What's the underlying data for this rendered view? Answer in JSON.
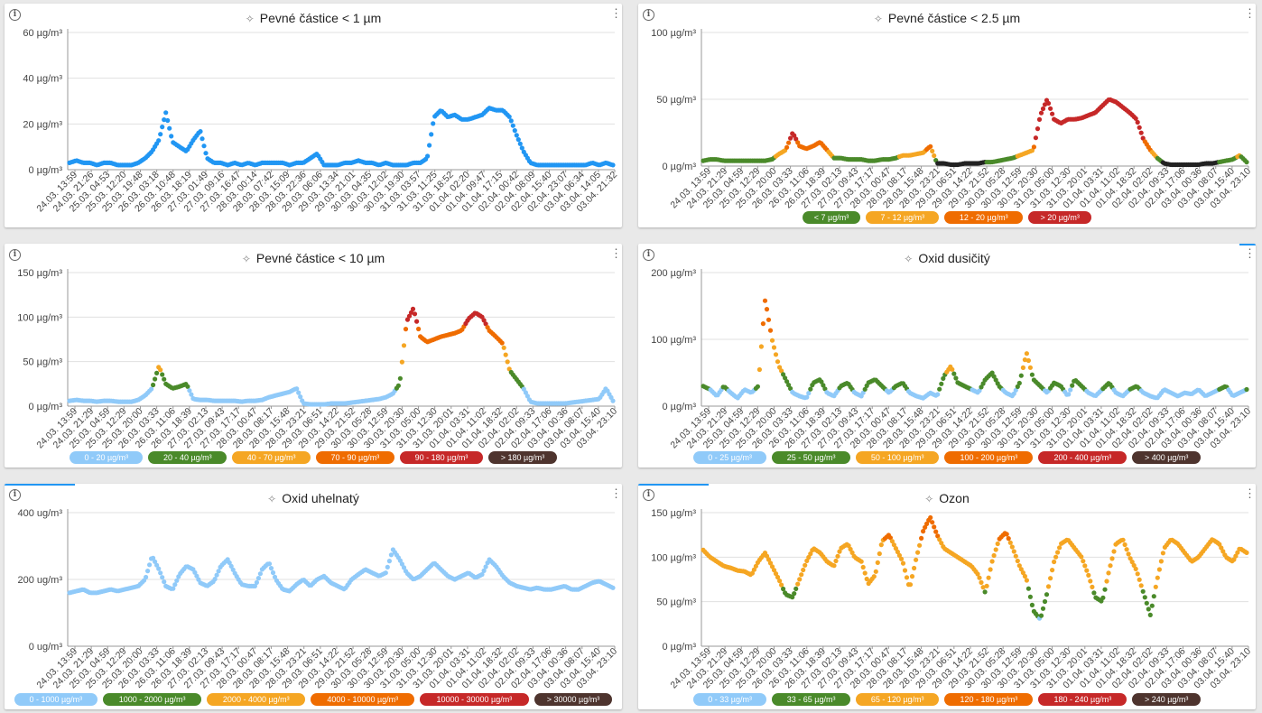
{
  "colors": {
    "blue": "#2196f3",
    "lightblue": "#90caf9",
    "green": "#4a8a2a",
    "yellow": "#f5a623",
    "orange": "#ef6c00",
    "red": "#c62828",
    "black": "#222222",
    "brown": "#4e342e"
  },
  "panels": [
    {
      "title": "Pevné částice < 1 µm",
      "yunit": "µg/m³",
      "ylim": [
        0,
        60
      ],
      "yticks": [
        0,
        20,
        40,
        60
      ],
      "xticks": [
        "24.03. 13:59",
        "24.03. 21:26",
        "25.03. 04:53",
        "25.03. 12:20",
        "25.03. 19:48",
        "26.03. 03:18",
        "26.03. 10:48",
        "26.03. 18:19",
        "27.03. 01:49",
        "27.03. 09:16",
        "27.03. 16:47",
        "28.03. 00:14",
        "28.03. 07:42",
        "28.03. 15:09",
        "28.03. 22:36",
        "29.03. 06:06",
        "29.03. 13:34",
        "29.03. 21:01",
        "30.03. 04:35",
        "30.03. 12:02",
        "30.03. 19:30",
        "31.03. 03:57",
        "31.03. 11:25",
        "31.03. 18:52",
        "01.04. 02:20",
        "01.04. 09:47",
        "01.04. 17:15",
        "02.04. 00:42",
        "02.04. 08:09",
        "02.04. 15:40",
        "02.04. 23:07",
        "03.04. 06:34",
        "03.04. 14:05",
        "03.04. 21:32"
      ],
      "legend": [],
      "chart_data": {
        "type": "scatter",
        "x_count": 80,
        "values": [
          3,
          4,
          3,
          3,
          2,
          3,
          3,
          2,
          2,
          2,
          3,
          5,
          8,
          13,
          25,
          12,
          10,
          8,
          13,
          17,
          5,
          3,
          3,
          2,
          3,
          2,
          3,
          2,
          3,
          3,
          3,
          3,
          2,
          3,
          3,
          5,
          7,
          2,
          2,
          2,
          3,
          3,
          4,
          3,
          3,
          2,
          3,
          2,
          2,
          2,
          3,
          3,
          5,
          23,
          26,
          23,
          24,
          22,
          22,
          23,
          24,
          27,
          26,
          26,
          23,
          15,
          8,
          3,
          2,
          2,
          2,
          2,
          2,
          2,
          2,
          2,
          3,
          2,
          3,
          2
        ],
        "bands": [
          [
            0,
            "blue"
          ]
        ]
      }
    },
    {
      "title": "Pevné částice < 2.5 µm",
      "yunit": "µg/m³",
      "ylim": [
        0,
        100
      ],
      "yticks": [
        0,
        50,
        100
      ],
      "xticks": [
        "24.03. 13:59",
        "24.03. 21:29",
        "25.03. 04:59",
        "25.03. 12:29",
        "25.03. 20:00",
        "26.03. 03:33",
        "26.03. 11:06",
        "26.03. 18:39",
        "27.03. 02:13",
        "27.03. 09:43",
        "27.03. 17:17",
        "28.03. 00:47",
        "28.03. 08:17",
        "28.03. 15:48",
        "28.03. 23:21",
        "29.03. 06:51",
        "29.03. 14:22",
        "29.03. 21:52",
        "30.03. 05:28",
        "30.03. 12:59",
        "30.03. 20:30",
        "31.03. 05:00",
        "31.03. 12:30",
        "31.03. 20:01",
        "01.04. 03:31",
        "01.04. 11:02",
        "01.04. 18:32",
        "02.04. 02:02",
        "02.04. 09:33",
        "02.04. 17:06",
        "03.04. 00:36",
        "03.04. 08:07",
        "03.04. 15:40",
        "03.04. 23:10"
      ],
      "legend": [
        {
          "label": "< 7 µg/m³",
          "color": "green"
        },
        {
          "label": "7 - 12 µg/m³",
          "color": "yellow"
        },
        {
          "label": "12 - 20 µg/m³",
          "color": "orange"
        },
        {
          "label": "> 20 µg/m³",
          "color": "red"
        }
      ],
      "chart_data": {
        "type": "scatter",
        "x_count": 80,
        "values": [
          4,
          5,
          5,
          4,
          4,
          4,
          4,
          4,
          4,
          4,
          5,
          9,
          12,
          25,
          15,
          13,
          15,
          18,
          12,
          6,
          6,
          5,
          5,
          5,
          4,
          4,
          5,
          5,
          6,
          8,
          8,
          9,
          10,
          15,
          2,
          2,
          1,
          1,
          2,
          2,
          2,
          3,
          3,
          4,
          5,
          6,
          8,
          10,
          12,
          38,
          50,
          35,
          32,
          35,
          35,
          36,
          38,
          40,
          45,
          50,
          48,
          44,
          40,
          35,
          20,
          12,
          6,
          2,
          1,
          1,
          1,
          1,
          1,
          2,
          2,
          3,
          4,
          5,
          8,
          3
        ],
        "bands": [
          [
            0,
            "black"
          ],
          [
            3,
            "green"
          ],
          [
            7,
            "yellow"
          ],
          [
            12,
            "orange"
          ],
          [
            20,
            "red"
          ]
        ]
      }
    },
    {
      "title": "Pevné částice < 10 µm",
      "yunit": "µg/m³",
      "ylim": [
        0,
        150
      ],
      "yticks": [
        0,
        50,
        100,
        150
      ],
      "xticks": [
        "24.03. 13:59",
        "24.03. 21:29",
        "25.03. 04:59",
        "25.03. 12:29",
        "25.03. 20:00",
        "26.03. 03:33",
        "26.03. 11:06",
        "26.03. 18:39",
        "27.03. 02:13",
        "27.03. 09:43",
        "27.03. 17:17",
        "28.03. 00:47",
        "28.03. 08:17",
        "28.03. 15:48",
        "28.03. 23:21",
        "29.03. 06:51",
        "29.03. 14:22",
        "29.03. 21:52",
        "30.03. 05:28",
        "30.03. 12:59",
        "30.03. 20:30",
        "31.03. 05:00",
        "31.03. 12:30",
        "31.03. 20:01",
        "01.04. 03:31",
        "01.04. 11:02",
        "01.04. 18:32",
        "02.04. 02:02",
        "02.04. 09:33",
        "02.04. 17:06",
        "03.04. 00:36",
        "03.04. 08:07",
        "03.04. 15:40",
        "03.04. 23:10"
      ],
      "legend": [
        {
          "label": "0 - 20 µg/m³",
          "color": "lightblue"
        },
        {
          "label": "20 - 40 µg/m³",
          "color": "green"
        },
        {
          "label": "40 - 70 µg/m³",
          "color": "yellow"
        },
        {
          "label": "70 - 90 µg/m³",
          "color": "orange"
        },
        {
          "label": "90 - 180 µg/m³",
          "color": "red"
        },
        {
          "label": "> 180 µg/m³",
          "color": "brown"
        }
      ],
      "chart_data": {
        "type": "scatter",
        "x_count": 80,
        "values": [
          6,
          7,
          6,
          6,
          5,
          6,
          6,
          5,
          5,
          5,
          7,
          12,
          20,
          45,
          25,
          20,
          22,
          25,
          8,
          7,
          7,
          6,
          6,
          6,
          6,
          5,
          6,
          6,
          7,
          10,
          12,
          14,
          16,
          20,
          3,
          2,
          2,
          2,
          3,
          3,
          3,
          4,
          5,
          6,
          7,
          8,
          10,
          14,
          25,
          95,
          110,
          78,
          72,
          75,
          78,
          80,
          82,
          85,
          98,
          105,
          100,
          85,
          78,
          70,
          40,
          30,
          20,
          5,
          3,
          3,
          3,
          3,
          3,
          4,
          5,
          6,
          7,
          8,
          20,
          6
        ],
        "bands": [
          [
            0,
            "lightblue"
          ],
          [
            20,
            "green"
          ],
          [
            40,
            "yellow"
          ],
          [
            70,
            "orange"
          ],
          [
            90,
            "red"
          ],
          [
            180,
            "brown"
          ]
        ]
      }
    },
    {
      "title": "Oxid dusičitý",
      "yunit": "µg/m³",
      "ylim": [
        0,
        200
      ],
      "yticks": [
        0,
        100,
        200
      ],
      "xticks": [
        "24.03. 13:59",
        "24.03. 21:29",
        "25.03. 04:59",
        "25.03. 12:29",
        "25.03. 20:00",
        "26.03. 03:33",
        "26.03. 11:06",
        "26.03. 18:39",
        "27.03. 02:13",
        "27.03. 09:43",
        "27.03. 17:17",
        "28.03. 00:47",
        "28.03. 08:17",
        "28.03. 15:48",
        "28.03. 23:21",
        "29.03. 06:51",
        "29.03. 14:22",
        "29.03. 21:52",
        "30.03. 05:28",
        "30.03. 12:59",
        "30.03. 20:30",
        "31.03. 05:00",
        "31.03. 12:30",
        "31.03. 20:01",
        "01.04. 03:31",
        "01.04. 11:02",
        "01.04. 18:32",
        "02.04. 02:02",
        "02.04. 09:33",
        "02.04. 17:06",
        "03.04. 00:36",
        "03.04. 08:07",
        "03.04. 15:40",
        "03.04. 23:10"
      ],
      "legend": [
        {
          "label": "0 - 25 µg/m³",
          "color": "lightblue"
        },
        {
          "label": "25 - 50 µg/m³",
          "color": "green"
        },
        {
          "label": "50 - 100 µg/m³",
          "color": "yellow"
        },
        {
          "label": "100 - 200 µg/m³",
          "color": "orange"
        },
        {
          "label": "200 - 400 µg/m³",
          "color": "red"
        },
        {
          "label": "> 400 µg/m³",
          "color": "brown"
        }
      ],
      "chart_data": {
        "type": "scatter",
        "x_count": 80,
        "values": [
          30,
          25,
          15,
          30,
          20,
          12,
          25,
          20,
          30,
          160,
          100,
          60,
          40,
          20,
          15,
          12,
          35,
          40,
          20,
          15,
          30,
          35,
          20,
          15,
          35,
          40,
          30,
          20,
          30,
          35,
          20,
          15,
          12,
          20,
          15,
          45,
          60,
          35,
          30,
          25,
          20,
          40,
          50,
          30,
          20,
          15,
          35,
          80,
          40,
          30,
          20,
          35,
          30,
          15,
          40,
          30,
          20,
          15,
          25,
          35,
          20,
          15,
          25,
          30,
          20,
          15,
          12,
          25,
          20,
          15,
          20,
          18,
          25,
          15,
          20,
          25,
          30,
          15,
          20,
          25
        ],
        "bands": [
          [
            0,
            "lightblue"
          ],
          [
            25,
            "green"
          ],
          [
            50,
            "yellow"
          ],
          [
            100,
            "orange"
          ],
          [
            200,
            "red"
          ],
          [
            400,
            "brown"
          ]
        ]
      }
    },
    {
      "title": "Oxid uhelnatý",
      "yunit": "ug/m³",
      "ylim": [
        0,
        400
      ],
      "yticks": [
        0,
        200,
        400
      ],
      "xticks": [
        "24.03. 13:59",
        "24.03. 21:29",
        "25.03. 04:59",
        "25.03. 12:29",
        "25.03. 20:00",
        "26.03. 03:33",
        "26.03. 11:06",
        "26.03. 18:39",
        "27.03. 02:13",
        "27.03. 09:43",
        "27.03. 17:17",
        "28.03. 00:47",
        "28.03. 08:17",
        "28.03. 15:48",
        "28.03. 23:21",
        "29.03. 06:51",
        "29.03. 14:22",
        "29.03. 21:52",
        "30.03. 05:28",
        "30.03. 12:59",
        "30.03. 20:30",
        "31.03. 05:00",
        "31.03. 12:30",
        "31.03. 20:01",
        "01.04. 03:31",
        "01.04. 11:02",
        "01.04. 18:32",
        "02.04. 02:02",
        "02.04. 09:33",
        "02.04. 17:06",
        "03.04. 00:36",
        "03.04. 08:07",
        "03.04. 15:40",
        "03.04. 23:10"
      ],
      "legend": [
        {
          "label": "0 - 1000 µg/m³",
          "color": "lightblue"
        },
        {
          "label": "1000 - 2000 µg/m³",
          "color": "green"
        },
        {
          "label": "2000 - 4000 µg/m³",
          "color": "yellow"
        },
        {
          "label": "4000 - 10000 µg/m³",
          "color": "orange"
        },
        {
          "label": "10000 - 30000 µg/m³",
          "color": "red"
        },
        {
          "label": "> 30000 µg/m³",
          "color": "brown"
        }
      ],
      "chart_data": {
        "type": "scatter",
        "x_count": 80,
        "values": [
          160,
          165,
          170,
          160,
          160,
          165,
          170,
          165,
          170,
          175,
          180,
          200,
          270,
          230,
          180,
          170,
          215,
          240,
          230,
          190,
          180,
          195,
          240,
          260,
          220,
          185,
          180,
          180,
          230,
          250,
          200,
          170,
          165,
          185,
          200,
          180,
          200,
          210,
          190,
          180,
          170,
          200,
          215,
          230,
          220,
          210,
          220,
          290,
          260,
          220,
          200,
          210,
          230,
          250,
          230,
          210,
          200,
          210,
          220,
          205,
          215,
          260,
          240,
          210,
          190,
          180,
          175,
          170,
          175,
          170,
          170,
          175,
          180,
          170,
          170,
          180,
          190,
          195,
          185,
          175
        ],
        "bands": [
          [
            0,
            "lightblue"
          ],
          [
            1000,
            "green"
          ],
          [
            2000,
            "yellow"
          ],
          [
            4000,
            "orange"
          ],
          [
            10000,
            "red"
          ],
          [
            30000,
            "brown"
          ]
        ]
      }
    },
    {
      "title": "Ozon",
      "yunit": "µg/m³",
      "ylim": [
        0,
        150
      ],
      "yticks": [
        0,
        50,
        100,
        150
      ],
      "xticks": [
        "24.03. 13:59",
        "24.03. 21:29",
        "25.03. 04:59",
        "25.03. 12:29",
        "25.03. 20:00",
        "26.03. 03:33",
        "26.03. 11:06",
        "26.03. 18:39",
        "27.03. 02:13",
        "27.03. 09:43",
        "27.03. 17:17",
        "28.03. 00:47",
        "28.03. 08:17",
        "28.03. 15:48",
        "28.03. 23:21",
        "29.03. 06:51",
        "29.03. 14:22",
        "29.03. 21:52",
        "30.03. 05:28",
        "30.03. 12:59",
        "30.03. 20:30",
        "31.03. 05:00",
        "31.03. 12:30",
        "31.03. 20:01",
        "01.04. 03:31",
        "01.04. 11:02",
        "01.04. 18:32",
        "02.04. 02:02",
        "02.04. 09:33",
        "02.04. 17:06",
        "03.04. 00:36",
        "03.04. 08:07",
        "03.04. 15:40",
        "03.04. 23:10"
      ],
      "legend": [
        {
          "label": "0 - 33 µg/m³",
          "color": "lightblue"
        },
        {
          "label": "33 - 65 µg/m³",
          "color": "green"
        },
        {
          "label": "65 - 120 µg/m³",
          "color": "yellow"
        },
        {
          "label": "120 - 180 µg/m³",
          "color": "orange"
        },
        {
          "label": "180 - 240 µg/m³",
          "color": "red"
        },
        {
          "label": "> 240 µg/m³",
          "color": "brown"
        }
      ],
      "chart_data": {
        "type": "scatter",
        "x_count": 80,
        "values": [
          108,
          100,
          95,
          90,
          88,
          85,
          84,
          80,
          95,
          105,
          90,
          75,
          58,
          55,
          75,
          95,
          110,
          105,
          95,
          90,
          110,
          115,
          100,
          95,
          70,
          80,
          118,
          125,
          110,
          95,
          65,
          100,
          130,
          145,
          125,
          110,
          105,
          100,
          95,
          90,
          80,
          60,
          95,
          120,
          128,
          110,
          90,
          75,
          40,
          30,
          60,
          95,
          115,
          120,
          110,
          100,
          80,
          55,
          50,
          85,
          115,
          120,
          100,
          85,
          60,
          35,
          75,
          110,
          120,
          115,
          105,
          95,
          100,
          110,
          120,
          115,
          100,
          95,
          110,
          105
        ],
        "bands": [
          [
            0,
            "lightblue"
          ],
          [
            33,
            "green"
          ],
          [
            65,
            "yellow"
          ],
          [
            120,
            "orange"
          ],
          [
            180,
            "red"
          ],
          [
            240,
            "brown"
          ]
        ]
      }
    }
  ]
}
